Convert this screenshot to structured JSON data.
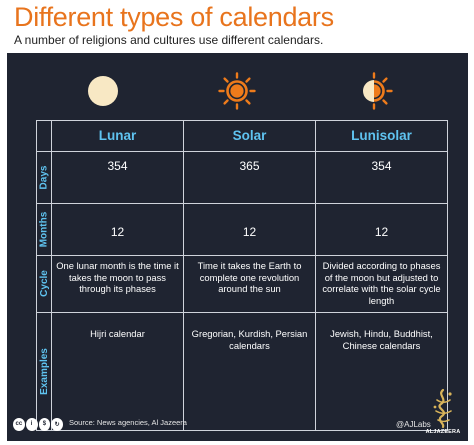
{
  "header": {
    "title": "Different types of calendars",
    "subtitle": "A number of religions and cultures use different calendars."
  },
  "icons": {
    "lunar": "full-moon-icon",
    "solar": "sun-icon",
    "lunisolar": "half-sun-half-moon-icon"
  },
  "colors": {
    "title": "#e8741d",
    "panel_bg": "#1f2431",
    "accent_blue": "#5fc3f0",
    "sun_orange": "#ee7b1b",
    "moon_cream": "#f8e8c4"
  },
  "table": {
    "columns": [
      "Lunar",
      "Solar",
      "Lunisolar"
    ],
    "rows": [
      {
        "label": "Days",
        "values": [
          "354",
          "365",
          "354"
        ]
      },
      {
        "label": "Months",
        "values": [
          "12",
          "12",
          "12"
        ]
      },
      {
        "label": "Cycle",
        "values": [
          "One lunar month is the time it takes the moon to pass through its phases",
          "Time it takes the Earth to complete one revolution around the sun",
          "Divided according to phases of the moon but adjusted to correlate with the solar cycle length"
        ]
      },
      {
        "label": "Examples",
        "values": [
          "Hijri calendar",
          "Gregorian, Kurdish, Persian calendars",
          "Jewish, Hindu, Buddhist, Chinese calendars"
        ]
      }
    ]
  },
  "footer": {
    "license": "cc-by-nc-sa-icon",
    "source": "Source: News agencies, Al Jazeera",
    "credit": "@AJLabs",
    "brand": "ALJAZEERA"
  }
}
